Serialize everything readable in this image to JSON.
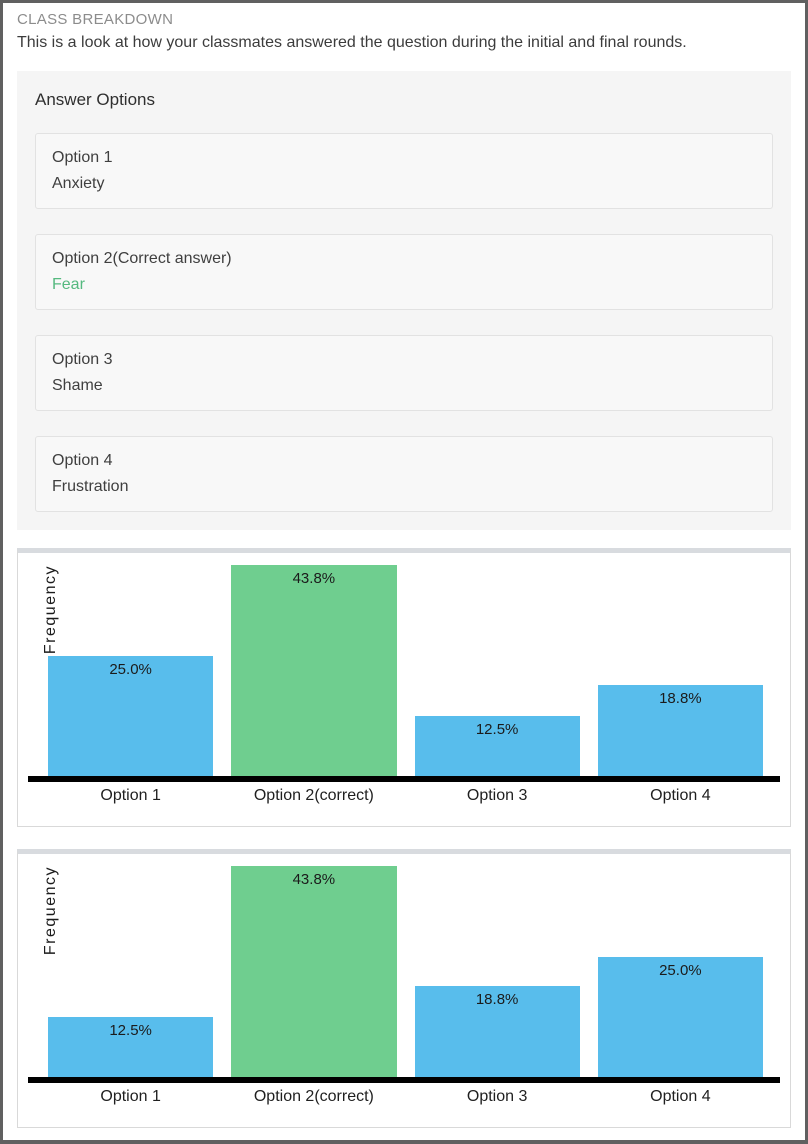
{
  "page": {
    "title": "CLASS BREAKDOWN",
    "subtitle": "This is a look at how your classmates answered the question during the initial and final rounds."
  },
  "answer_options": {
    "heading": "Answer Options",
    "options": [
      {
        "label": "Option 1",
        "text": "Anxiety",
        "correct": false
      },
      {
        "label": "Option 2(Correct answer)",
        "text": "Fear",
        "correct": true
      },
      {
        "label": "Option 3",
        "text": "Shame",
        "correct": false
      },
      {
        "label": "Option 4",
        "text": "Frustration",
        "correct": false
      }
    ]
  },
  "colors": {
    "bar_blue": "#58bdec",
    "bar_green": "#6fce8f",
    "correct_text_green": "#55b97f",
    "axis_black": "#000000"
  },
  "chart_data": [
    {
      "type": "bar",
      "name": "initial-round",
      "ylabel": "Frequency",
      "categories": [
        "Option 1",
        "Option 2(correct)",
        "Option 3",
        "Option 4"
      ],
      "values": [
        25.0,
        43.8,
        12.5,
        18.8
      ],
      "value_labels": [
        "25.0%",
        "43.8%",
        "12.5%",
        "18.8%"
      ],
      "highlight_index": 1,
      "ymax": 43.8,
      "grid": false,
      "legend": "none"
    },
    {
      "type": "bar",
      "name": "final-round",
      "ylabel": "Frequency",
      "categories": [
        "Option 1",
        "Option 2(correct)",
        "Option 3",
        "Option 4"
      ],
      "values": [
        12.5,
        43.8,
        18.8,
        25.0
      ],
      "value_labels": [
        "12.5%",
        "43.8%",
        "18.8%",
        "25.0%"
      ],
      "highlight_index": 1,
      "ymax": 43.8,
      "grid": false,
      "legend": "none"
    }
  ]
}
